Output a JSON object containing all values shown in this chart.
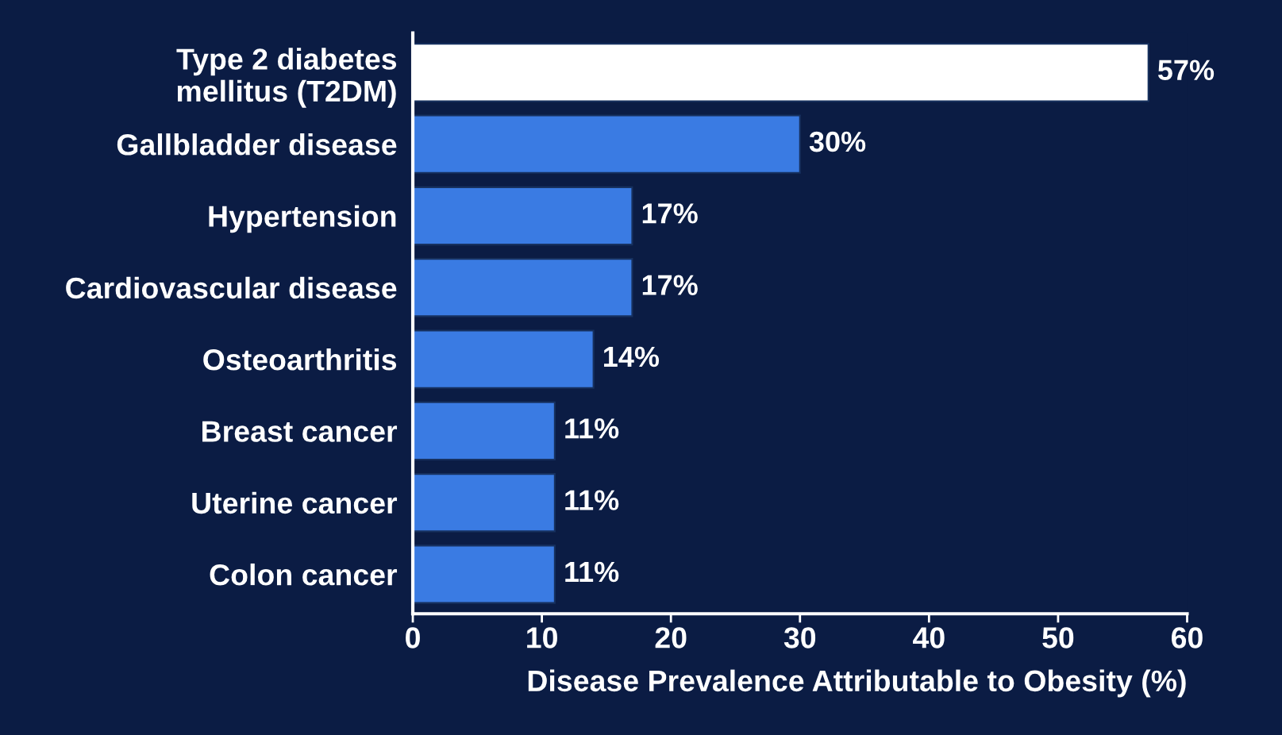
{
  "chart_data": {
    "type": "bar",
    "orientation": "horizontal",
    "xlabel": "Disease Prevalence Attributable to Obesity (%)",
    "categories": [
      "Type 2 diabetes\nmellitus (T2DM)",
      "Gallbladder disease",
      "Hypertension",
      "Cardiovascular disease",
      "Osteoarthritis",
      "Breast cancer",
      "Uterine cancer",
      "Colon cancer"
    ],
    "values": [
      57,
      30,
      17,
      17,
      14,
      11,
      11,
      11
    ],
    "colors": [
      "#ffffff",
      "#3a7be3",
      "#3a7be3",
      "#3a7be3",
      "#3a7be3",
      "#3a7be3",
      "#3a7be3",
      "#3a7be3"
    ],
    "value_labels": [
      "57%",
      "30%",
      "17%",
      "17%",
      "14%",
      "11%",
      "11%",
      "11%"
    ],
    "xlim": [
      0,
      60
    ],
    "xticks": [
      0,
      10,
      20,
      30,
      40,
      50,
      60
    ],
    "grid": false,
    "legend": false
  }
}
